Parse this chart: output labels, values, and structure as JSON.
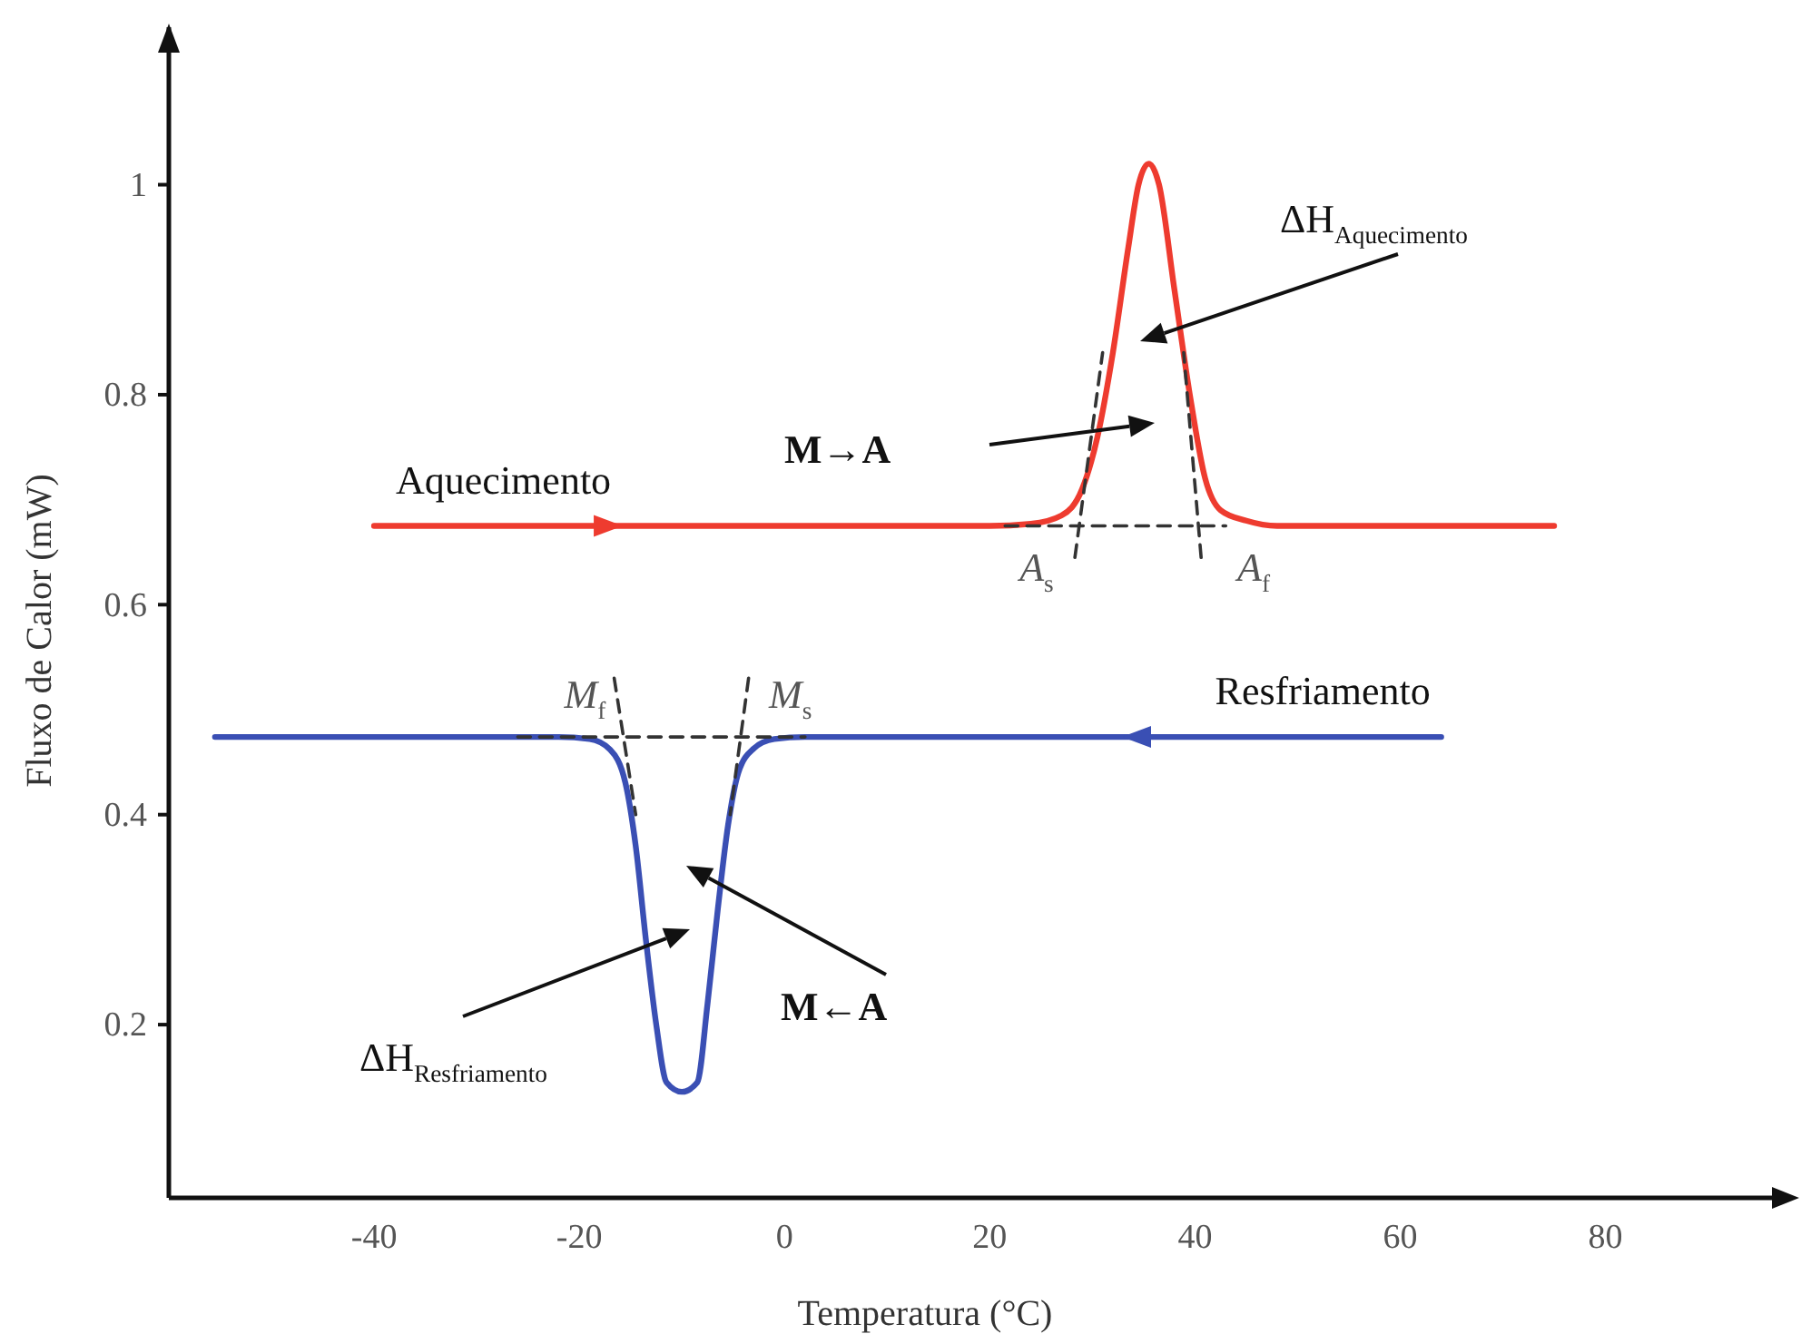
{
  "chart_data": {
    "type": "line",
    "xlabel": "Temperatura (°C)",
    "ylabel": "Fluxo de Calor (mW)",
    "xlim": [
      -60,
      98
    ],
    "ylim": [
      0.035,
      1.15
    ],
    "xticks": [
      -40,
      -20,
      0,
      20,
      40,
      60,
      80
    ],
    "yticks": [
      0.2,
      0.4,
      0.6,
      0.8,
      1
    ],
    "grid": false,
    "marker": "none",
    "series": [
      {
        "name": "Aquecimento",
        "color": "#ee3b2f",
        "x": [
          -40,
          20,
          24,
          27,
          29,
          30.5,
          32,
          33.5,
          34.5,
          35.5,
          36.5,
          38,
          39.5,
          41,
          42.5,
          45,
          48,
          75
        ],
        "values": [
          0.675,
          0.675,
          0.677,
          0.685,
          0.71,
          0.76,
          0.84,
          0.94,
          1.0,
          1.02,
          1.0,
          0.9,
          0.8,
          0.72,
          0.69,
          0.68,
          0.675,
          0.675
        ]
      },
      {
        "name": "Resfriamento",
        "color": "#3a4fb4",
        "x": [
          -55.5,
          -22,
          -19,
          -17,
          -15.5,
          -14.5,
          -13.5,
          -12.5,
          -11.5,
          -10,
          -8.5,
          -7.5,
          -6.5,
          -5.5,
          -4.5,
          -3,
          -1,
          2,
          64
        ],
        "values": [
          0.474,
          0.474,
          0.472,
          0.462,
          0.43,
          0.37,
          0.28,
          0.2,
          0.145,
          0.136,
          0.145,
          0.22,
          0.31,
          0.39,
          0.44,
          0.463,
          0.472,
          0.474,
          0.474
        ]
      },
      {
        "type": "line",
        "color": "#333333",
        "line_style": "dashed",
        "x": [
          21.5,
          43
        ],
        "values": [
          0.675,
          0.675
        ]
      },
      {
        "type": "line",
        "color": "#333333",
        "line_style": "dashed",
        "x": [
          28.3,
          31
        ],
        "values": [
          0.645,
          0.84
        ]
      },
      {
        "type": "line",
        "color": "#333333",
        "line_style": "dashed",
        "x": [
          40.6,
          38.9
        ],
        "values": [
          0.645,
          0.84
        ]
      },
      {
        "type": "line",
        "color": "#333333",
        "line_style": "dashed",
        "x": [
          -26,
          2
        ],
        "values": [
          0.474,
          0.474
        ]
      },
      {
        "type": "line",
        "color": "#333333",
        "line_style": "dashed",
        "x": [
          -16.6,
          -14.5
        ],
        "values": [
          0.53,
          0.4
        ]
      },
      {
        "type": "line",
        "color": "#333333",
        "line_style": "dashed",
        "x": [
          -3.5,
          -5.3
        ],
        "values": [
          0.53,
          0.4
        ]
      }
    ],
    "annotations": [
      "ΔH$_{Aquecimento}$",
      "M→A",
      {
        "text": "A$_{s}$",
        "x": 28,
        "y": 0.675
      },
      {
        "text": "A$_{f}$",
        "x": 42,
        "y": 0.675
      },
      {
        "text": "M$_{f}$",
        "x": -16,
        "y": 0.474
      },
      {
        "text": "M$_{s}$",
        "x": -4,
        "y": 0.474
      },
      "M←A",
      "ΔH$_{Resfriamento}$"
    ]
  }
}
